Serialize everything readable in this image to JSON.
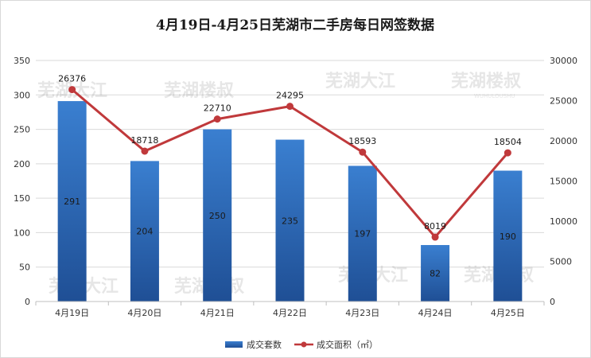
{
  "chart_data": {
    "type": "bar",
    "title": "4月19日-4月25日芜湖市二手房每日网签数据",
    "categories": [
      "4月19日",
      "4月20日",
      "4月21日",
      "4月22日",
      "4月23日",
      "4月24日",
      "4月25日"
    ],
    "series": [
      {
        "name": "成交套数",
        "type": "bar",
        "axis": "left",
        "color": "#2e6fbf",
        "values": [
          291,
          204,
          250,
          235,
          197,
          82,
          190
        ]
      },
      {
        "name": "成交面积（㎡）",
        "type": "line",
        "axis": "right",
        "color": "#c0393b",
        "values": [
          26376,
          18718,
          22710,
          24295,
          18593,
          8019,
          18504
        ]
      }
    ],
    "y_left": {
      "min": 0,
      "max": 350,
      "step": 50,
      "ticks": [
        "0",
        "50",
        "100",
        "150",
        "200",
        "250",
        "300",
        "350"
      ]
    },
    "y_right": {
      "min": 0,
      "max": 30000,
      "step": 5000,
      "ticks": [
        "0",
        "5000",
        "10000",
        "15000",
        "20000",
        "25000",
        "30000"
      ]
    },
    "grid": true,
    "legend_position": "bottom-center"
  },
  "watermark": {
    "text_cn": "芜湖大江",
    "text_cn2": "芜湖楼叔",
    "text_en": "WUHULOUSHU"
  },
  "colors": {
    "bar_top": "#3a7fd0",
    "bar_bottom": "#1f4f95",
    "line": "#c0393b",
    "grid": "#d9d9d9"
  }
}
